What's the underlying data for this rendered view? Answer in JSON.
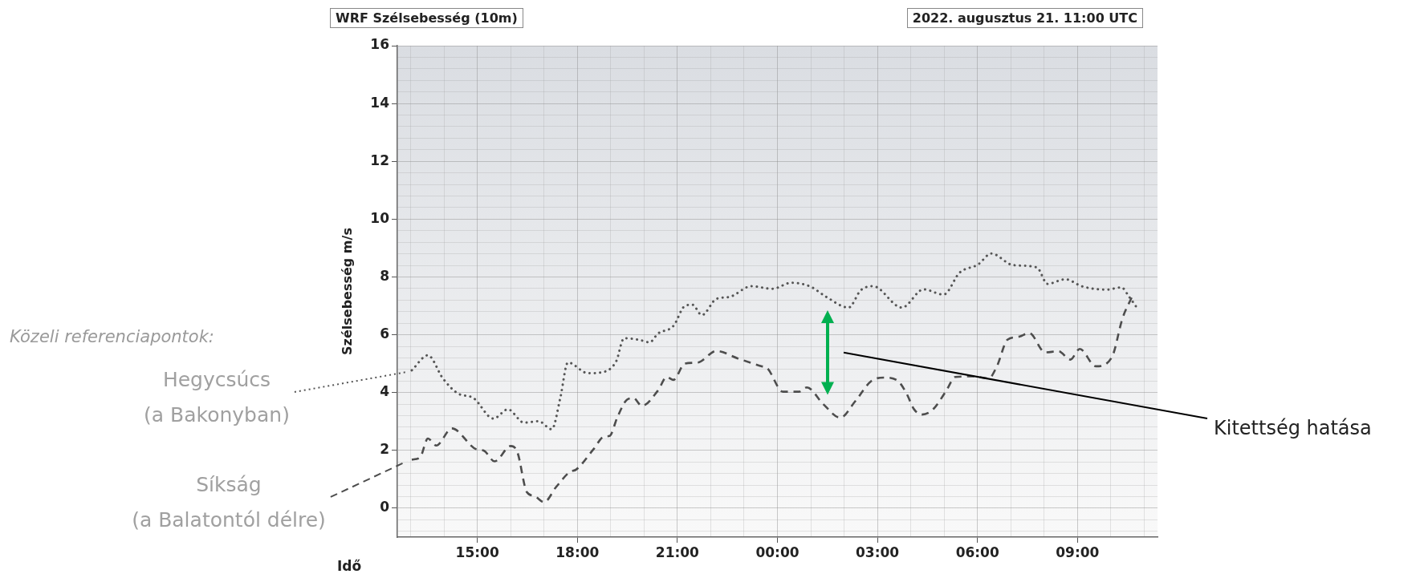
{
  "chart_data": {
    "type": "line",
    "title": "WRF Szélsebesség (10m)",
    "subtitle": "2022. augusztus 21. 11:00 UTC",
    "xlabel": "Idő",
    "ylabel": "Szélsebesség m/s",
    "legend_title": "Közeli referenciapontok:",
    "annotations": [
      "Kitettség hatása"
    ],
    "xlim": [
      "2022-08-21T12:36",
      "2022-08-22T11:24"
    ],
    "xticks": [
      {
        "value": "2022-08-21T13:00",
        "label": null
      },
      {
        "value": "2022-08-21T14:00",
        "label": null
      },
      {
        "value": "2022-08-21T15:00",
        "label": "15:00"
      },
      {
        "value": "2022-08-21T16:00",
        "label": null
      },
      {
        "value": "2022-08-21T17:00",
        "label": null
      },
      {
        "value": "2022-08-21T18:00",
        "label": "18:00"
      },
      {
        "value": "2022-08-21T19:00",
        "label": null
      },
      {
        "value": "2022-08-21T20:00",
        "label": null
      },
      {
        "value": "2022-08-21T21:00",
        "label": "21:00"
      },
      {
        "value": "2022-08-21T22:00",
        "label": null
      },
      {
        "value": "2022-08-21T23:00",
        "label": null
      },
      {
        "value": "2022-08-22T00:00",
        "label": "00:00"
      },
      {
        "value": "2022-08-22T01:00",
        "label": null
      },
      {
        "value": "2022-08-22T02:00",
        "label": null
      },
      {
        "value": "2022-08-22T03:00",
        "label": "03:00"
      },
      {
        "value": "2022-08-22T04:00",
        "label": null
      },
      {
        "value": "2022-08-22T05:00",
        "label": null
      },
      {
        "value": "2022-08-22T06:00",
        "label": "06:00"
      },
      {
        "value": "2022-08-22T07:00",
        "label": null
      },
      {
        "value": "2022-08-22T08:00",
        "label": null
      },
      {
        "value": "2022-08-22T09:00",
        "label": "09:00"
      },
      {
        "value": "2022-08-22T10:00",
        "label": null
      },
      {
        "value": "2022-08-22T11:00",
        "label": null
      }
    ],
    "ylim": [
      -1,
      16
    ],
    "yticks": [
      {
        "value": -0.8,
        "label": null
      },
      {
        "value": -0.4,
        "label": null
      },
      0,
      {
        "value": 0.4,
        "label": null
      },
      {
        "value": 0.8,
        "label": null
      },
      {
        "value": 1.2,
        "label": null
      },
      {
        "value": 1.6,
        "label": null
      },
      2,
      {
        "value": 2.4,
        "label": null
      },
      {
        "value": 2.8,
        "label": null
      },
      {
        "value": 3.2,
        "label": null
      },
      {
        "value": 3.6,
        "label": null
      },
      4,
      {
        "value": 4.4,
        "label": null
      },
      {
        "value": 4.8,
        "label": null
      },
      {
        "value": 5.2,
        "label": null
      },
      {
        "value": 5.6,
        "label": null
      },
      6,
      {
        "value": 6.4,
        "label": null
      },
      {
        "value": 6.8,
        "label": null
      },
      {
        "value": 7.2,
        "label": null
      },
      {
        "value": 7.6,
        "label": null
      },
      8,
      {
        "value": 8.4,
        "label": null
      },
      {
        "value": 8.8,
        "label": null
      },
      {
        "value": 9.2,
        "label": null
      },
      {
        "value": 9.6,
        "label": null
      },
      10,
      {
        "value": 10.4,
        "label": null
      },
      {
        "value": 10.8,
        "label": null
      },
      {
        "value": 11.2,
        "label": null
      },
      {
        "value": 11.6,
        "label": null
      },
      12,
      {
        "value": 12.4,
        "label": null
      },
      {
        "value": 12.8,
        "label": null
      },
      {
        "value": 13.2,
        "label": null
      },
      {
        "value": 13.6,
        "label": null
      },
      14,
      {
        "value": 14.4,
        "label": null
      },
      {
        "value": 14.8,
        "label": null
      },
      {
        "value": 15.2,
        "label": null
      },
      {
        "value": 15.6,
        "label": null
      },
      16
    ],
    "grid": true,
    "legend": "left",
    "series": [
      {
        "name": "Hegycsúcs (a Bakonyban)",
        "color": "#555555",
        "line_style": "dotted",
        "x": [
          "2022-08-21T13:02",
          "2022-08-21T13:31",
          "2022-08-21T13:58",
          "2022-08-21T14:24",
          "2022-08-21T14:53",
          "2022-08-21T15:29",
          "2022-08-21T15:55",
          "2022-08-21T16:24",
          "2022-08-21T16:50",
          "2022-08-21T17:14",
          "2022-08-21T17:29",
          "2022-08-21T17:43",
          "2022-08-21T18:19",
          "2022-08-21T18:44",
          "2022-08-21T19:10",
          "2022-08-21T19:24",
          "2022-08-21T19:50",
          "2022-08-21T20:10",
          "2022-08-21T20:25",
          "2022-08-21T20:53",
          "2022-08-21T21:13",
          "2022-08-21T21:27",
          "2022-08-21T21:44",
          "2022-08-21T22:10",
          "2022-08-21T22:34",
          "2022-08-21T23:13",
          "2022-08-21T23:51",
          "2022-08-22T00:25",
          "2022-08-22T00:59",
          "2022-08-22T01:28",
          "2022-08-22T02:08",
          "2022-08-22T02:30",
          "2022-08-22T02:52",
          "2022-08-22T03:44",
          "2022-08-22T04:23",
          "2022-08-22T04:59",
          "2022-08-22T05:28",
          "2022-08-22T06:01",
          "2022-08-22T06:25",
          "2022-08-22T07:04",
          "2022-08-22T07:47",
          "2022-08-22T08:06",
          "2022-08-22T08:38",
          "2022-08-22T09:09",
          "2022-08-22T09:52",
          "2022-08-22T10:19",
          "2022-08-22T10:33",
          "2022-08-22T10:46"
        ],
        "values": [
          4.77,
          5.29,
          4.49,
          3.98,
          3.81,
          3.1,
          3.42,
          2.96,
          3.01,
          2.73,
          3.79,
          5.04,
          4.67,
          4.7,
          5.09,
          5.88,
          5.83,
          5.74,
          6.04,
          6.31,
          6.99,
          7.04,
          6.68,
          7.24,
          7.31,
          7.68,
          7.59,
          7.8,
          7.67,
          7.31,
          6.94,
          7.54,
          7.68,
          6.94,
          7.57,
          7.39,
          8.15,
          8.43,
          8.81,
          8.41,
          8.33,
          7.76,
          7.92,
          7.67,
          7.56,
          7.64,
          7.31,
          6.96
        ]
      },
      {
        "name": "Síkság (a Balatontól délre)",
        "color": "#4d4d4d",
        "line_style": "dashed",
        "x": [
          "2022-08-21T13:02",
          "2022-08-21T13:17",
          "2022-08-21T13:31",
          "2022-08-21T13:46",
          "2022-08-21T14:14",
          "2022-08-21T14:58",
          "2022-08-21T15:12",
          "2022-08-21T15:31",
          "2022-08-21T16:00",
          "2022-08-21T16:12",
          "2022-08-21T16:29",
          "2022-08-21T16:43",
          "2022-08-21T17:00",
          "2022-08-21T17:22",
          "2022-08-21T17:46",
          "2022-08-21T17:58",
          "2022-08-21T18:29",
          "2022-08-21T18:48",
          "2022-08-21T18:58",
          "2022-08-21T19:12",
          "2022-08-21T19:29",
          "2022-08-21T19:41",
          "2022-08-21T19:56",
          "2022-08-21T20:25",
          "2022-08-21T20:41",
          "2022-08-21T20:53",
          "2022-08-21T21:13",
          "2022-08-21T21:37",
          "2022-08-21T22:10",
          "2022-08-21T22:49",
          "2022-08-21T23:32",
          "2022-08-21T23:41",
          "2022-08-22T00:10",
          "2022-08-22T00:39",
          "2022-08-22T00:53",
          "2022-08-22T01:22",
          "2022-08-22T01:53",
          "2022-08-22T02:20",
          "2022-08-22T02:49",
          "2022-08-22T03:13",
          "2022-08-22T03:37",
          "2022-08-22T03:52",
          "2022-08-22T04:06",
          "2022-08-22T04:20",
          "2022-08-22T04:40",
          "2022-08-22T05:04",
          "2022-08-22T05:20",
          "2022-08-22T05:52",
          "2022-08-22T06:20",
          "2022-08-22T06:35",
          "2022-08-22T06:54",
          "2022-08-22T07:14",
          "2022-08-22T07:33",
          "2022-08-22T08:02",
          "2022-08-22T08:26",
          "2022-08-22T08:47",
          "2022-08-22T09:04",
          "2022-08-22T09:33",
          "2022-08-22T10:02",
          "2022-08-22T10:21",
          "2022-08-22T10:38"
        ],
        "values": [
          1.68,
          1.76,
          2.41,
          2.17,
          2.76,
          2.04,
          1.99,
          1.62,
          2.15,
          1.94,
          0.56,
          0.42,
          0.21,
          0.74,
          1.25,
          1.34,
          2.04,
          2.48,
          2.5,
          3.15,
          3.75,
          3.81,
          3.54,
          4.07,
          4.54,
          4.44,
          5.0,
          5.04,
          5.44,
          5.18,
          4.91,
          4.86,
          4.03,
          4.03,
          4.18,
          3.61,
          3.13,
          3.7,
          4.4,
          4.52,
          4.4,
          3.98,
          3.42,
          3.24,
          3.42,
          4.07,
          4.54,
          4.56,
          4.49,
          4.91,
          5.83,
          5.93,
          6.06,
          5.39,
          5.43,
          5.14,
          5.51,
          4.91,
          5.23,
          6.57,
          7.31
        ]
      }
    ]
  }
}
